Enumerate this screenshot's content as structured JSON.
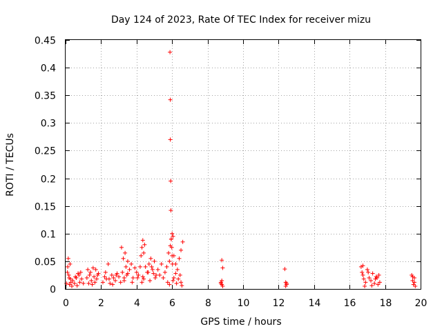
{
  "chart_data": {
    "type": "scatter",
    "title": "Day 124 of 2023, Rate Of TEC Index for receiver mizu",
    "xlabel": "GPS time / hours",
    "ylabel": "ROTI / TECUs",
    "xlim": [
      0,
      20
    ],
    "ylim": [
      0,
      0.45
    ],
    "xticks": [
      "0",
      "2",
      "4",
      "6",
      "8",
      "10",
      "12",
      "14",
      "16",
      "18",
      "20"
    ],
    "yticks": [
      "0",
      "0.05",
      "0.1",
      "0.15",
      "0.2",
      "0.25",
      "0.3",
      "0.35",
      "0.4",
      "0.45"
    ],
    "grid": true,
    "marker": "plus",
    "color": "#ff0000",
    "series": [
      {
        "x": [
          0.05,
          0.1,
          0.15,
          0.2,
          0.25,
          0.3,
          0.12,
          0.18,
          0.22,
          0.28,
          0.35,
          0.4,
          0.5,
          0.6,
          0.7,
          0.8,
          0.9,
          0.55,
          0.65,
          0.75,
          0.85,
          1.0,
          1.2,
          1.25,
          1.3,
          1.35,
          1.4,
          1.45,
          1.5,
          1.55,
          1.6,
          1.65,
          1.7,
          1.75,
          1.8,
          1.85,
          2.1,
          2.2,
          2.3,
          2.4,
          2.5,
          2.6,
          2.7,
          2.8,
          2.9,
          3.0,
          3.1,
          2.25,
          2.45,
          2.65,
          2.85,
          3.15,
          3.2,
          3.25,
          3.3,
          3.35,
          3.4,
          3.45,
          3.5,
          3.6,
          3.7,
          3.8,
          3.9,
          4.0,
          4.1,
          4.2,
          3.3,
          3.5,
          3.75,
          4.05,
          4.25,
          4.3,
          4.35,
          4.4,
          4.45,
          4.5,
          4.6,
          4.7,
          4.8,
          4.9,
          5.0,
          5.1,
          4.3,
          4.35,
          4.4,
          4.65,
          4.75,
          4.85,
          4.95,
          5.05,
          5.2,
          5.3,
          5.4,
          5.5,
          5.6,
          5.7,
          5.8,
          5.85,
          5.9,
          5.95,
          6.0,
          6.05,
          6.1,
          6.2,
          6.3,
          6.4,
          6.5,
          6.6,
          5.88,
          5.9,
          5.9,
          5.92,
          5.93,
          5.95,
          5.98,
          6.0,
          6.02,
          6.05,
          5.75,
          5.85,
          6.1,
          6.2,
          6.25,
          6.35,
          6.45,
          6.5,
          6.55,
          8.75,
          8.8,
          8.85,
          8.8,
          8.85,
          8.75,
          8.8,
          12.35,
          12.4,
          12.45,
          12.4,
          12.45,
          16.65,
          16.7,
          16.75,
          16.8,
          16.9,
          17.0,
          17.1,
          17.2,
          17.3,
          17.4,
          17.5,
          17.6,
          17.65,
          17.7,
          16.75,
          16.85,
          17.05,
          17.25,
          17.45,
          17.55,
          19.5,
          19.55,
          19.6,
          19.65,
          19.7,
          19.55,
          19.65
        ],
        "y": [
          0.01,
          0.03,
          0.055,
          0.02,
          0.045,
          0.012,
          0.04,
          0.025,
          0.008,
          0.018,
          0.005,
          0.015,
          0.01,
          0.02,
          0.028,
          0.012,
          0.018,
          0.022,
          0.006,
          0.025,
          0.03,
          0.01,
          0.02,
          0.035,
          0.01,
          0.025,
          0.03,
          0.015,
          0.008,
          0.038,
          0.022,
          0.012,
          0.035,
          0.018,
          0.025,
          0.028,
          0.012,
          0.022,
          0.018,
          0.045,
          0.01,
          0.025,
          0.02,
          0.015,
          0.028,
          0.022,
          0.012,
          0.03,
          0.018,
          0.008,
          0.025,
          0.075,
          0.03,
          0.055,
          0.02,
          0.065,
          0.04,
          0.025,
          0.05,
          0.035,
          0.045,
          0.02,
          0.038,
          0.03,
          0.025,
          0.04,
          0.015,
          0.028,
          0.012,
          0.02,
          0.06,
          0.075,
          0.088,
          0.065,
          0.08,
          0.04,
          0.03,
          0.045,
          0.055,
          0.035,
          0.05,
          0.025,
          0.012,
          0.022,
          0.018,
          0.03,
          0.015,
          0.04,
          0.028,
          0.02,
          0.035,
          0.025,
          0.045,
          0.02,
          0.03,
          0.04,
          0.065,
          0.05,
          0.078,
          0.09,
          0.1,
          0.095,
          0.06,
          0.045,
          0.035,
          0.055,
          0.07,
          0.085,
          0.428,
          0.342,
          0.27,
          0.195,
          0.142,
          0.09,
          0.075,
          0.06,
          0.045,
          0.015,
          0.012,
          0.008,
          0.02,
          0.028,
          0.01,
          0.018,
          0.025,
          0.012,
          0.006,
          0.012,
          0.052,
          0.038,
          0.008,
          0.005,
          0.01,
          0.015,
          0.036,
          0.012,
          0.008,
          0.005,
          0.01,
          0.04,
          0.03,
          0.025,
          0.018,
          0.012,
          0.035,
          0.02,
          0.015,
          0.028,
          0.01,
          0.022,
          0.008,
          0.025,
          0.012,
          0.042,
          0.005,
          0.03,
          0.006,
          0.018,
          0.02,
          0.025,
          0.015,
          0.008,
          0.02,
          0.005,
          0.022,
          0.012
        ]
      }
    ]
  }
}
